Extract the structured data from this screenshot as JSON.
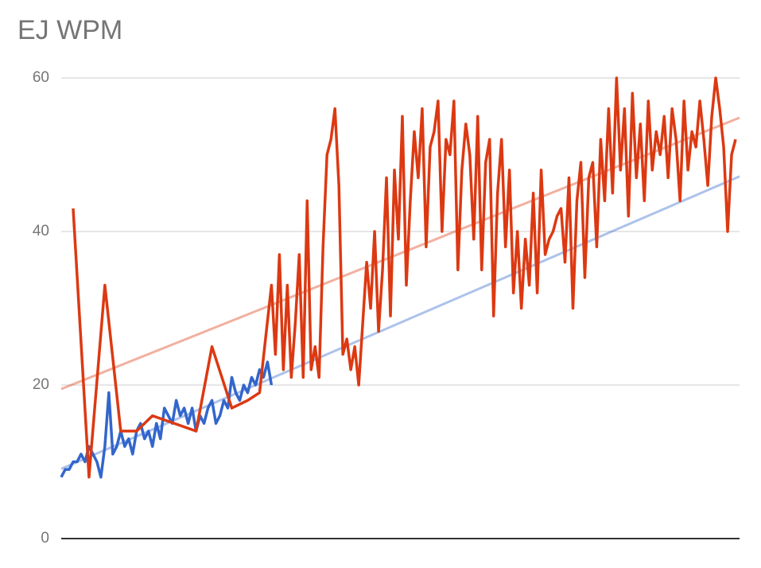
{
  "chart_data": {
    "type": "line",
    "title": "EJ WPM",
    "xlim": [
      0,
      171
    ],
    "ylim": [
      0,
      60
    ],
    "yticks": [
      0,
      20,
      40,
      60
    ],
    "grid": true,
    "trendlines": true,
    "series": [
      {
        "color": "#3366cc",
        "x": [
          0,
          1,
          2,
          3,
          4,
          5,
          6,
          7,
          8,
          9,
          10,
          11,
          12,
          13,
          14,
          15,
          16,
          17,
          18,
          19,
          20,
          21,
          22,
          23,
          24,
          25,
          26,
          27,
          28,
          29,
          30,
          31,
          32,
          33,
          34,
          35,
          36,
          37,
          38,
          39,
          40,
          41,
          42,
          43,
          44,
          45,
          46,
          47,
          48,
          49,
          50,
          51,
          52,
          53
        ],
        "values": [
          8,
          9,
          9,
          10,
          10,
          11,
          10,
          12,
          11,
          10,
          8,
          12,
          19,
          11,
          12,
          14,
          12,
          13,
          11,
          14,
          15,
          13,
          14,
          12,
          15,
          13,
          17,
          16,
          15,
          18,
          16,
          17,
          15,
          17,
          14,
          16,
          15,
          17,
          18,
          15,
          16,
          18,
          17,
          21,
          19,
          18,
          20,
          19,
          21,
          20,
          22,
          21,
          23,
          20
        ]
      },
      {
        "color": "#dc3912",
        "x": [
          3,
          7,
          11,
          15,
          19,
          23,
          34,
          38,
          43,
          47,
          50,
          53,
          54,
          55,
          56,
          57,
          58,
          59,
          60,
          61,
          62,
          63,
          64,
          65,
          66,
          67,
          68,
          69,
          70,
          71,
          72,
          73,
          74,
          75,
          76,
          77,
          78,
          79,
          80,
          81,
          82,
          83,
          84,
          85,
          86,
          87,
          88,
          89,
          90,
          91,
          92,
          93,
          94,
          95,
          96,
          97,
          98,
          99,
          100,
          101,
          102,
          103,
          104,
          105,
          106,
          107,
          108,
          109,
          110,
          111,
          112,
          113,
          114,
          115,
          116,
          117,
          118,
          119,
          120,
          121,
          122,
          123,
          124,
          125,
          126,
          127,
          128,
          129,
          130,
          131,
          132,
          133,
          134,
          135,
          136,
          137,
          138,
          139,
          140,
          141,
          142,
          143,
          144,
          145,
          146,
          147,
          148,
          149,
          150,
          151,
          152,
          153,
          154,
          155,
          156,
          157,
          158,
          159,
          160,
          161,
          162,
          163,
          164,
          165,
          166,
          167,
          168,
          169,
          170
        ],
        "values": [
          43,
          8,
          33,
          14,
          14,
          16,
          14,
          25,
          17,
          18,
          19,
          33,
          24,
          37,
          22,
          33,
          21,
          28,
          37,
          21,
          44,
          22,
          25,
          21,
          38,
          50,
          52,
          56,
          46,
          24,
          26,
          22,
          25,
          20,
          28,
          36,
          30,
          40,
          27,
          35,
          47,
          29,
          48,
          39,
          55,
          33,
          44,
          53,
          47,
          56,
          38,
          51,
          53,
          57,
          40,
          52,
          50,
          57,
          35,
          48,
          54,
          50,
          39,
          55,
          35,
          49,
          52,
          29,
          45,
          52,
          38,
          48,
          32,
          40,
          30,
          39,
          33,
          45,
          32,
          48,
          37,
          39,
          40,
          42,
          43,
          36,
          47,
          30,
          44,
          49,
          34,
          47,
          49,
          38,
          52,
          44,
          56,
          45,
          60,
          48,
          56,
          42,
          58,
          47,
          54,
          44,
          57,
          48,
          53,
          50,
          55,
          47,
          56,
          52,
          44,
          57,
          48,
          53,
          51,
          57,
          52,
          46,
          55,
          60,
          56,
          51,
          40,
          50,
          52
        ]
      }
    ]
  }
}
